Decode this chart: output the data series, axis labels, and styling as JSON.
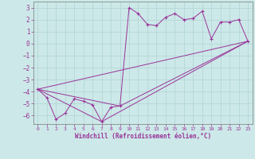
{
  "xlabel": "Windchill (Refroidissement éolien,°C)",
  "bg_color": "#cce8e8",
  "grid_color": "#b0d4d4",
  "line_color": "#993399",
  "spine_color": "#7a7a7a",
  "xlim": [
    -0.5,
    23.5
  ],
  "ylim": [
    -6.7,
    3.5
  ],
  "yticks": [
    -6,
    -5,
    -4,
    -3,
    -2,
    -1,
    0,
    1,
    2,
    3
  ],
  "xticks": [
    0,
    1,
    2,
    3,
    4,
    5,
    6,
    7,
    8,
    9,
    10,
    11,
    12,
    13,
    14,
    15,
    16,
    17,
    18,
    19,
    20,
    21,
    22,
    23
  ],
  "series1_x": [
    0,
    1,
    2,
    3,
    4,
    5,
    6,
    7,
    8,
    9,
    10,
    11,
    12,
    13,
    14,
    15,
    16,
    17,
    18,
    19,
    20,
    21,
    22,
    23
  ],
  "series1_y": [
    -3.8,
    -4.5,
    -6.3,
    -5.8,
    -4.6,
    -4.8,
    -5.1,
    -6.5,
    -5.3,
    -5.2,
    3.0,
    2.5,
    1.6,
    1.5,
    2.2,
    2.5,
    2.0,
    2.1,
    2.7,
    0.4,
    1.8,
    1.8,
    2.0,
    0.2
  ],
  "series2_x": [
    0,
    23
  ],
  "series2_y": [
    -3.8,
    0.2
  ],
  "series3_x": [
    0,
    7,
    23
  ],
  "series3_y": [
    -3.8,
    -6.5,
    0.2
  ],
  "series4_x": [
    0,
    9,
    23
  ],
  "series4_y": [
    -3.8,
    -5.2,
    0.2
  ]
}
